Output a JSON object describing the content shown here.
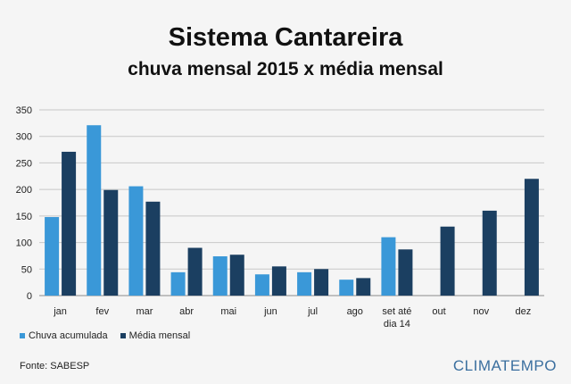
{
  "header": {
    "title": "Sistema Cantareira",
    "subtitle": "chuva mensal 2015 x média mensal"
  },
  "footer": {
    "source": "Fonte: SABESP",
    "brand": "CLIMATEMPO"
  },
  "colors": {
    "chuva": "#3a98d8",
    "media": "#1b3f61",
    "grid": "#c8c8c8",
    "axis": "#8a8a8a"
  },
  "chart_data": {
    "type": "bar",
    "title": "Sistema Cantareira",
    "subtitle": "chuva mensal 2015 x média mensal",
    "categories": [
      [
        "jan"
      ],
      [
        "fev"
      ],
      [
        "mar"
      ],
      [
        "abr"
      ],
      [
        "mai"
      ],
      [
        "jun"
      ],
      [
        "jul"
      ],
      [
        "ago"
      ],
      [
        "set até",
        "dia 14"
      ],
      [
        "out"
      ],
      [
        "nov"
      ],
      [
        "dez"
      ]
    ],
    "series": [
      {
        "name": "Chuva acumulada",
        "values": [
          148,
          321,
          206,
          44,
          74,
          40,
          44,
          30,
          110,
          null,
          null,
          null
        ]
      },
      {
        "name": "Média mensal",
        "values": [
          271,
          199,
          177,
          90,
          77,
          55,
          50,
          33,
          87,
          130,
          160,
          220
        ]
      }
    ],
    "yticks": [
      0,
      50,
      100,
      150,
      200,
      250,
      300,
      350
    ],
    "ylim": [
      0,
      350
    ],
    "grid": true,
    "legend": "bottom-left"
  }
}
